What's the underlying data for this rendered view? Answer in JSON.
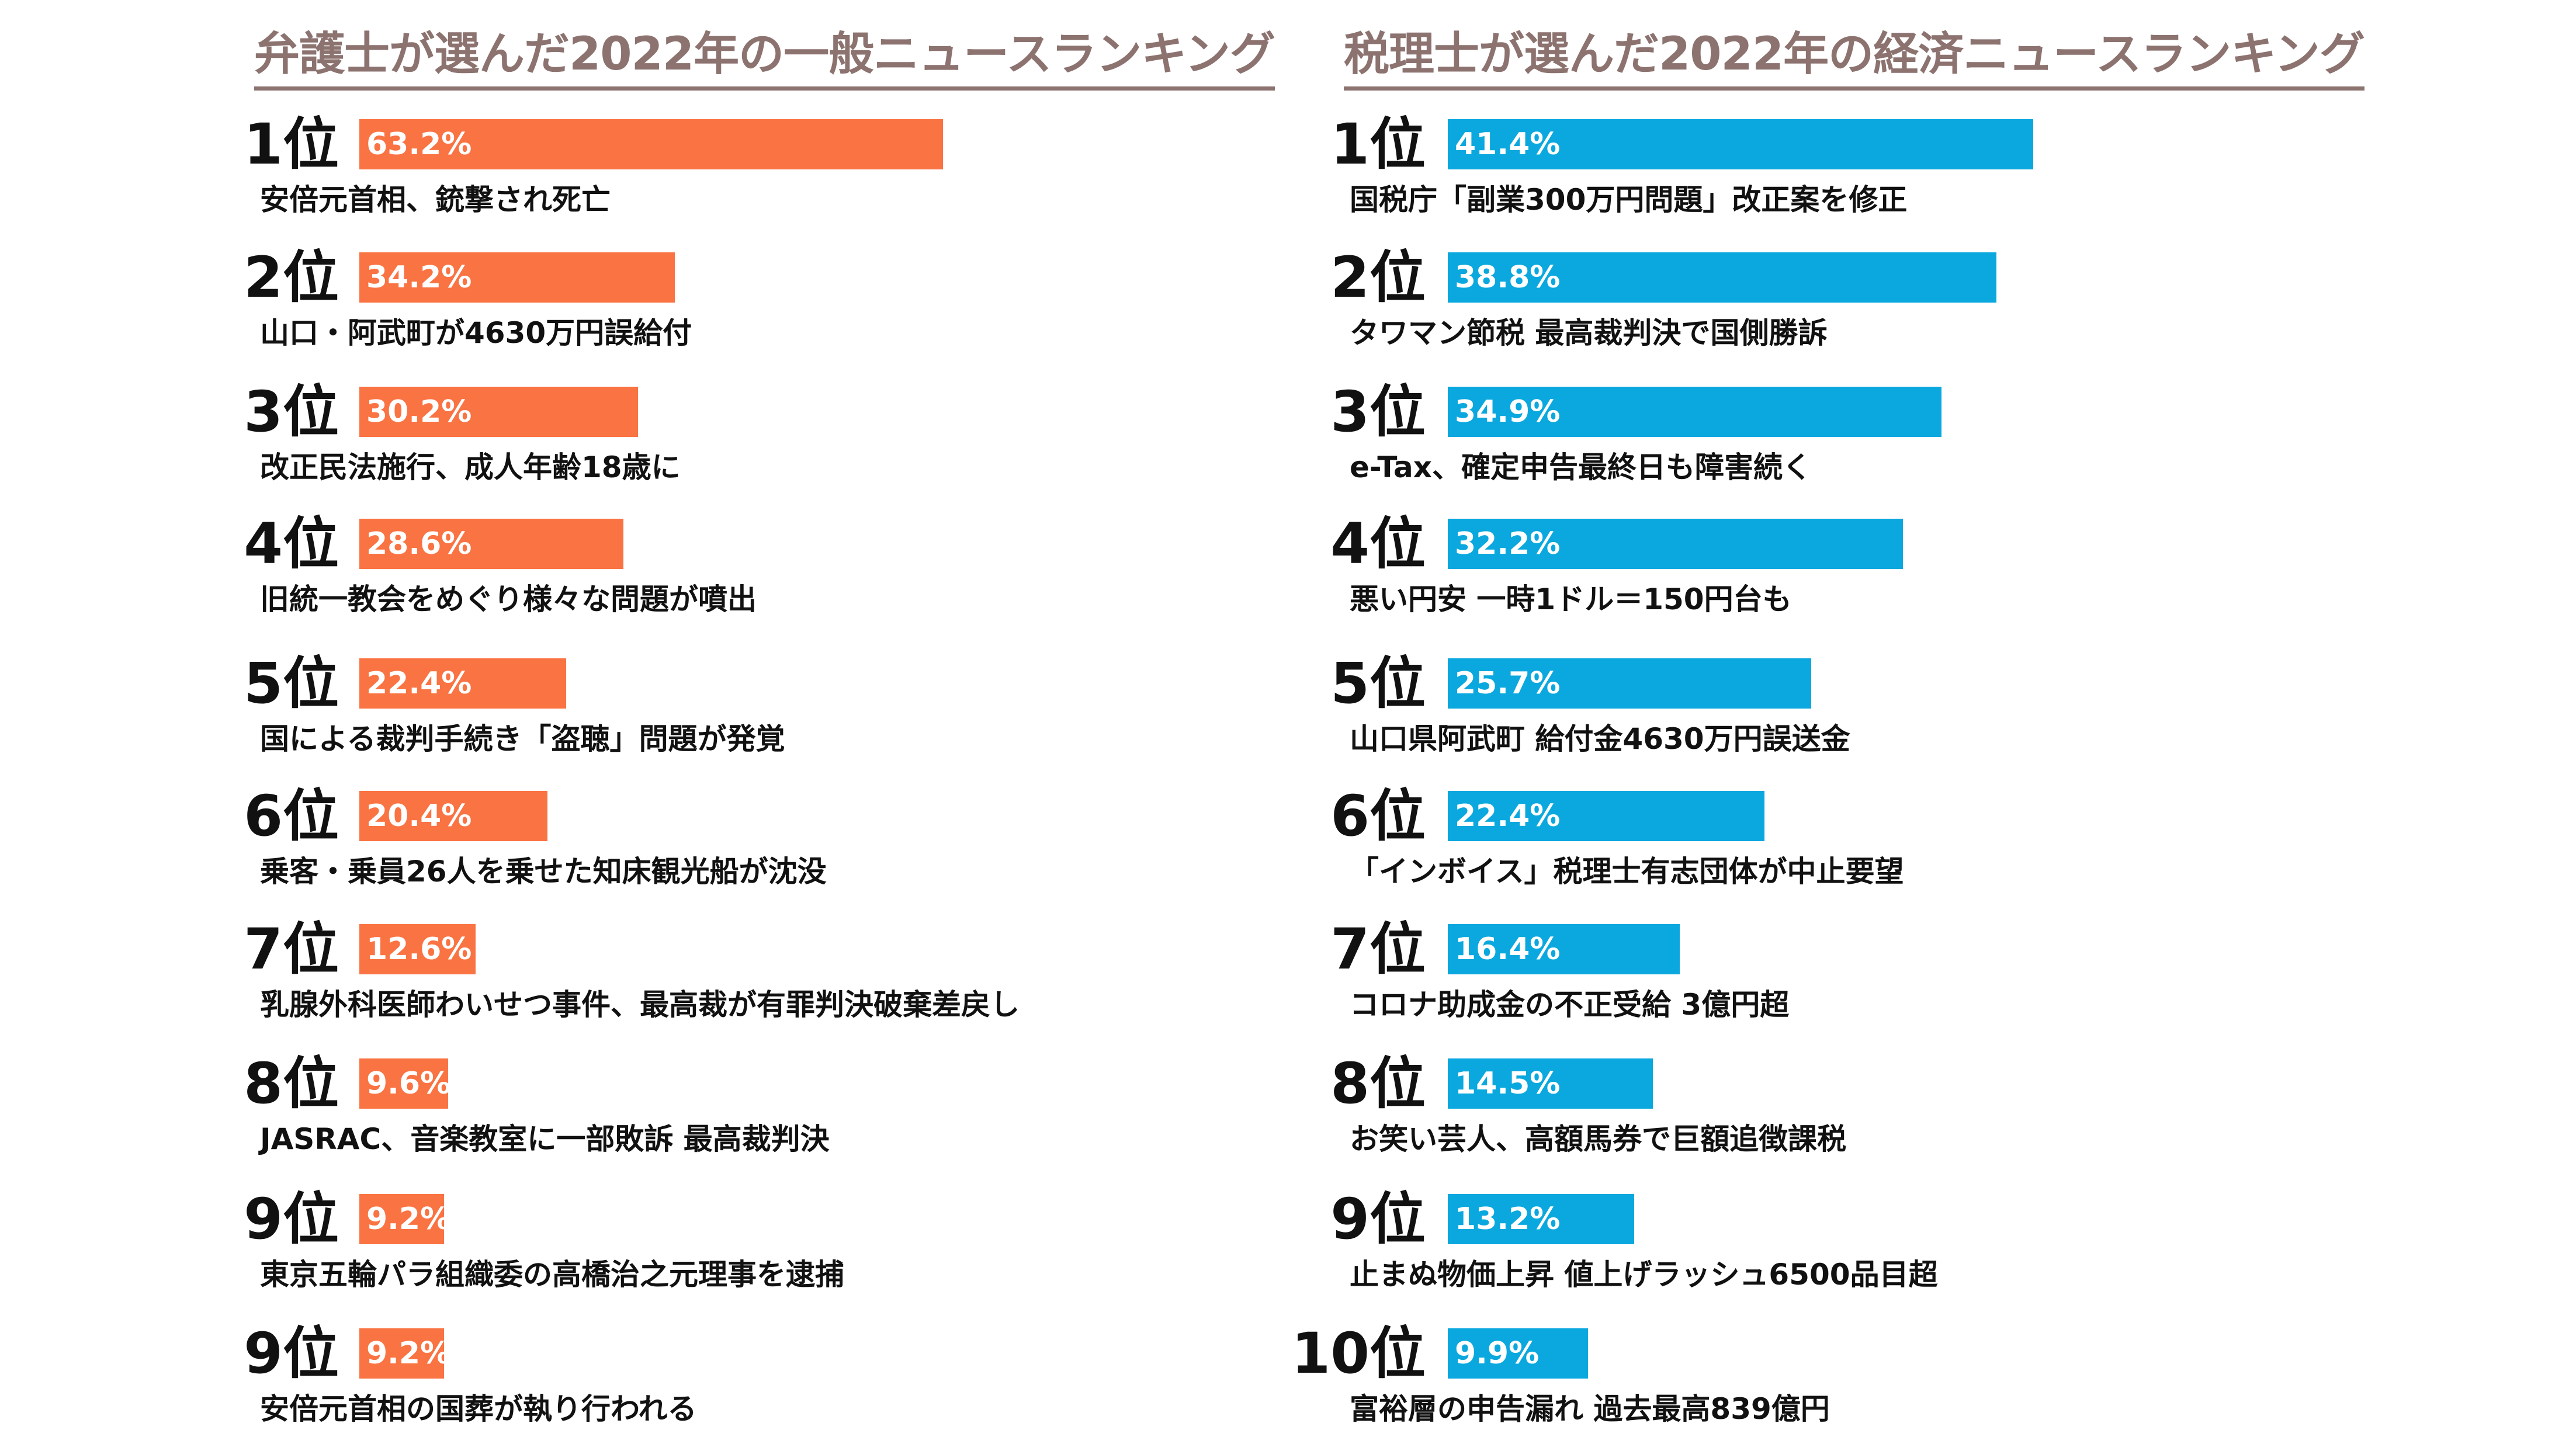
{
  "chart_data": [
    {
      "type": "bar",
      "title": "弁護士が選んだ2022年の一般ニュースランキング",
      "color": "#fa7342",
      "value_format": "percent",
      "rows": [
        {
          "rank": "1位",
          "value": 63.2,
          "label": "63.2%",
          "headline": "安倍元首相、銃撃され死亡"
        },
        {
          "rank": "2位",
          "value": 34.2,
          "label": "34.2%",
          "headline": "山口・阿武町が4630万円誤給付"
        },
        {
          "rank": "3位",
          "value": 30.2,
          "label": "30.2%",
          "headline": "改正民法施行、成人年齢18歳に"
        },
        {
          "rank": "4位",
          "value": 28.6,
          "label": "28.6%",
          "headline": "旧統一教会をめぐり様々な問題が噴出"
        },
        {
          "rank": "5位",
          "value": 22.4,
          "label": "22.4%",
          "headline": "国による裁判手続き「盗聴」問題が発覚"
        },
        {
          "rank": "6位",
          "value": 20.4,
          "label": "20.4%",
          "headline": "乗客・乗員26人を乗せた知床観光船が沈没"
        },
        {
          "rank": "7位",
          "value": 12.6,
          "label": "12.6%",
          "headline": "乳腺外科医師わいせつ事件、最高裁が有罪判決破棄差戻し"
        },
        {
          "rank": "8位",
          "value": 9.6,
          "label": "9.6%",
          "headline": "JASRAC、音楽教室に一部敗訴 最高裁判決"
        },
        {
          "rank": "9位",
          "value": 9.2,
          "label": "9.2%",
          "headline": "東京五輪パラ組織委の高橋治之元理事を逮捕"
        },
        {
          "rank": "9位",
          "value": 9.2,
          "label": "9.2%",
          "headline": "安倍元首相の国葬が執り行われる"
        }
      ]
    },
    {
      "type": "bar",
      "title": "税理士が選んだ2022年の経済ニュースランキング",
      "color": "#0aa8de",
      "value_format": "percent",
      "rows": [
        {
          "rank": "1位",
          "value": 41.4,
          "label": "41.4%",
          "headline": "国税庁「副業300万円問題」改正案を修正"
        },
        {
          "rank": "2位",
          "value": 38.8,
          "label": "38.8%",
          "headline": "タワマン節税 最高裁判決で国側勝訴"
        },
        {
          "rank": "3位",
          "value": 34.9,
          "label": "34.9%",
          "headline": "e-Tax、確定申告最終日も障害続く"
        },
        {
          "rank": "4位",
          "value": 32.2,
          "label": "32.2%",
          "headline": "悪い円安 一時1ドル＝150円台も"
        },
        {
          "rank": "5位",
          "value": 25.7,
          "label": "25.7%",
          "headline": "山口県阿武町 給付金4630万円誤送金"
        },
        {
          "rank": "6位",
          "value": 22.4,
          "label": "22.4%",
          "headline": "「インボイス」税理士有志団体が中止要望"
        },
        {
          "rank": "7位",
          "value": 16.4,
          "label": "16.4%",
          "headline": "コロナ助成金の不正受給 3億円超"
        },
        {
          "rank": "8位",
          "value": 14.5,
          "label": "14.5%",
          "headline": "お笑い芸人、高額馬券で巨額追徴課税"
        },
        {
          "rank": "9位",
          "value": 13.2,
          "label": "13.2%",
          "headline": "止まぬ物価上昇 値上げラッシュ6500品目超"
        },
        {
          "rank": "10位",
          "value": 9.9,
          "label": "9.9%",
          "headline": "富裕層の申告漏れ 過去最高839億円"
        }
      ]
    }
  ]
}
